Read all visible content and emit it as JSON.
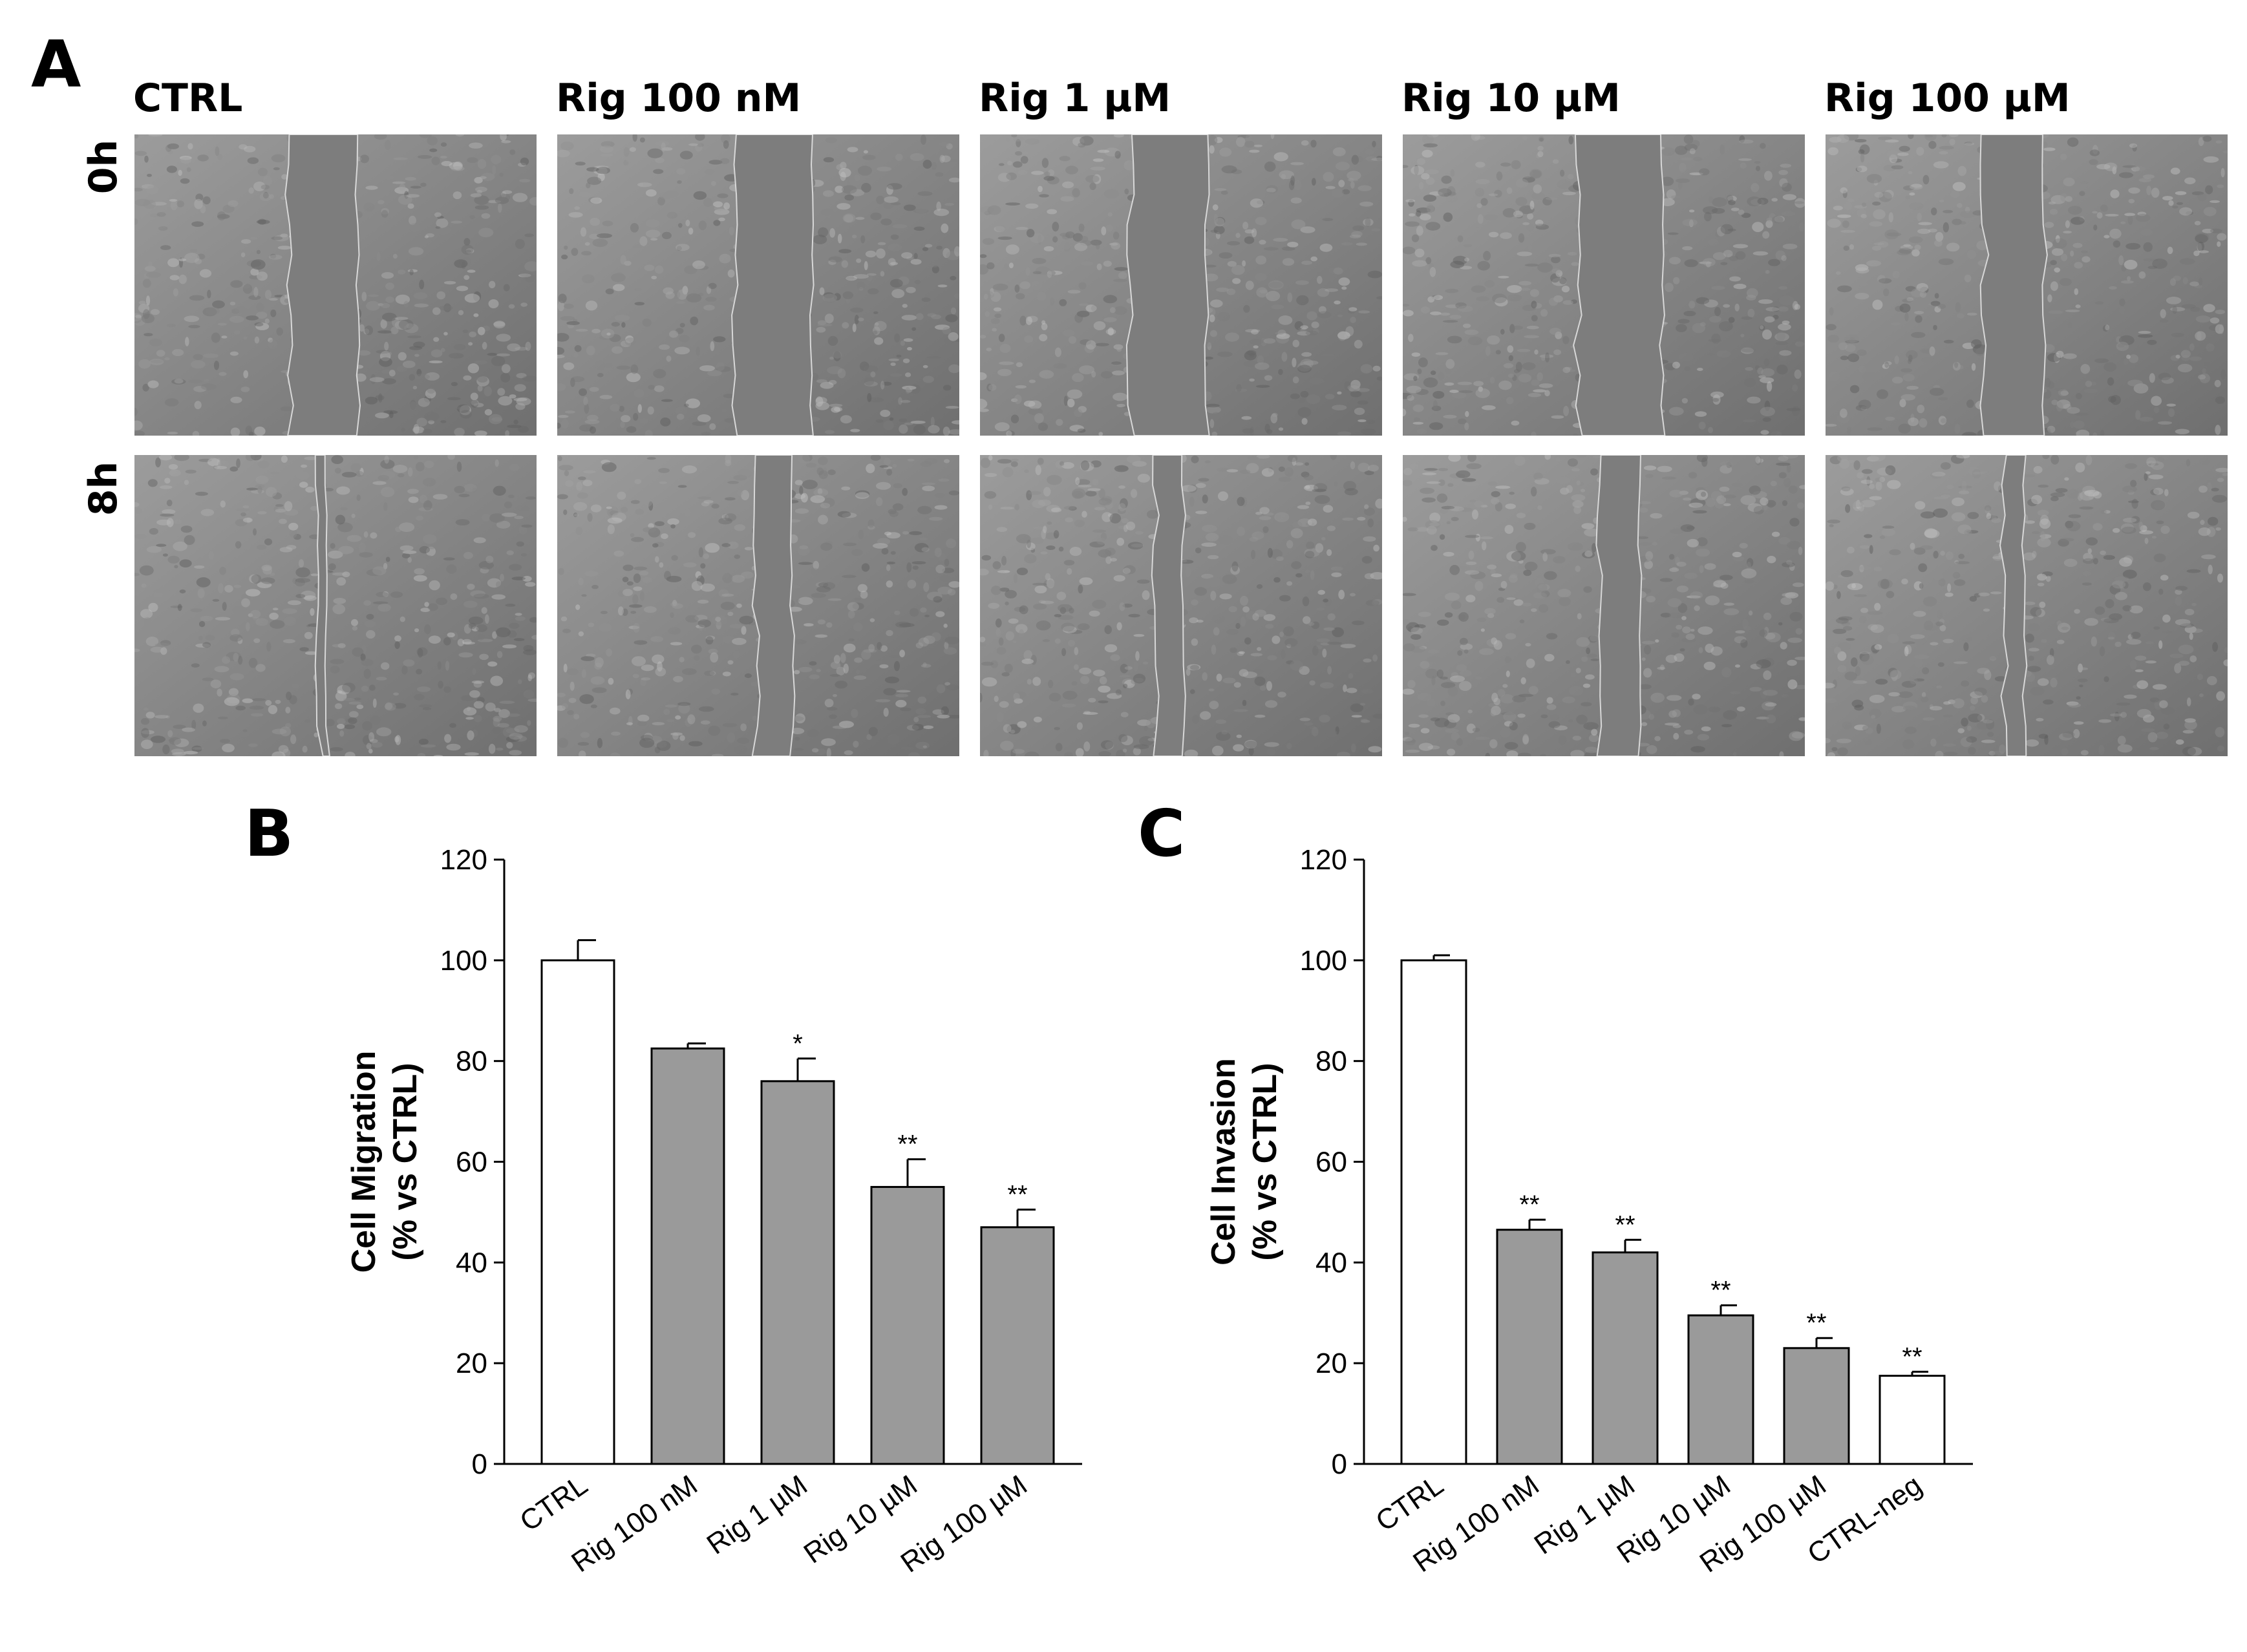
{
  "panel_a": {
    "letter": "A",
    "columns": [
      "CTRL",
      "Rig 100 nM",
      "Rig 1 µM",
      "Rig 10 µM",
      "Rig 100 µM"
    ],
    "rows": [
      "0h",
      "8h"
    ],
    "gap_fraction": {
      "0h": [
        0.17,
        0.19,
        0.19,
        0.21,
        0.15
      ],
      "8h": [
        0.02,
        0.09,
        0.07,
        0.1,
        0.05
      ]
    },
    "colors": {
      "background": "#8a8a8a",
      "scratch": "#7d7d7d"
    }
  },
  "chart_data": [
    {
      "panel": "B",
      "type": "bar",
      "title": "",
      "xlabel": "",
      "ylabel": [
        "Cell Migration",
        "(% vs CTRL)"
      ],
      "categories": [
        "CTRL",
        "Rig 100 nM",
        "Rig 1 µM",
        "Rig 10 µM",
        "Rig 100 µM"
      ],
      "values": [
        100,
        82.5,
        76,
        55,
        47
      ],
      "errors": [
        4,
        1,
        4.5,
        5.5,
        3.5
      ],
      "significance": [
        "",
        "",
        "*",
        "**",
        "**"
      ],
      "fill": [
        "#ffffff",
        "#9a9a9a",
        "#9a9a9a",
        "#9a9a9a",
        "#9a9a9a"
      ],
      "ylim": [
        0,
        120
      ],
      "yticks": [
        0,
        20,
        40,
        60,
        80,
        100,
        120
      ],
      "grid": false,
      "legend": "none"
    },
    {
      "panel": "C",
      "type": "bar",
      "title": "",
      "xlabel": "",
      "ylabel": [
        "Cell Invasion",
        "(% vs CTRL)"
      ],
      "categories": [
        "CTRL",
        "Rig 100 nM",
        "Rig 1 µM",
        "Rig 10 µM",
        "Rig 100 µM",
        "CTRL-neg"
      ],
      "values": [
        100,
        46.5,
        42,
        29.5,
        23,
        17.5
      ],
      "errors": [
        1,
        2,
        2.5,
        2,
        2,
        0.8
      ],
      "significance": [
        "",
        "**",
        "**",
        "**",
        "**",
        "**"
      ],
      "fill": [
        "#ffffff",
        "#9a9a9a",
        "#9a9a9a",
        "#9a9a9a",
        "#9a9a9a",
        "#ffffff"
      ],
      "ylim": [
        0,
        120
      ],
      "yticks": [
        0,
        20,
        40,
        60,
        80,
        100,
        120
      ],
      "grid": false,
      "legend": "none"
    }
  ]
}
